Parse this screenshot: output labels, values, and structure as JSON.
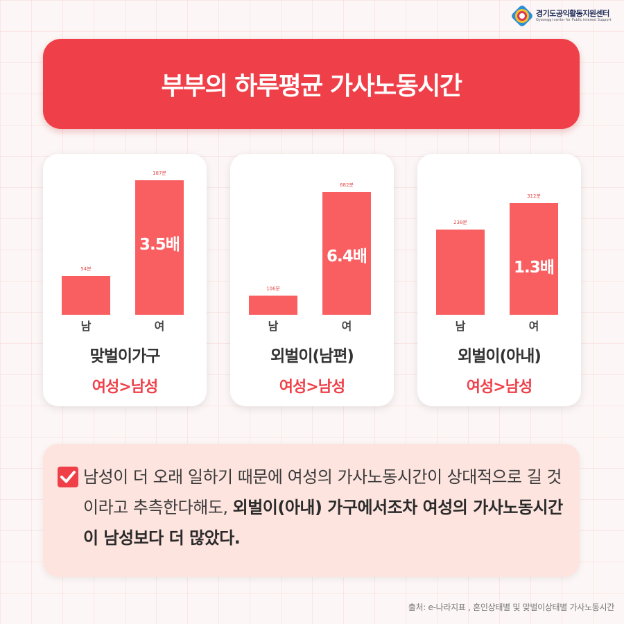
{
  "logo": {
    "name": "경기도공익활동지원센터",
    "sub": "Gyeonggi center for Public interest Support",
    "accent": "#1d2a57"
  },
  "title": "부부의 하루평균 가사노동시간",
  "colors": {
    "accent": "#ef4049",
    "bar": "#f95f61",
    "note_bg": "#fde4df"
  },
  "chart_data": [
    {
      "type": "bar",
      "title": "맞벌이가구",
      "categories": [
        "남",
        "여"
      ],
      "values": [
        54,
        187
      ],
      "value_labels": [
        "54분",
        "187분"
      ],
      "ratio_label": "3.5배",
      "comparison": "여성>남성"
    },
    {
      "type": "bar",
      "title": "외벌이(남편)",
      "categories": [
        "남",
        "여"
      ],
      "values": [
        106,
        682
      ],
      "value_labels": [
        "106분",
        "682분"
      ],
      "ratio_label": "6.4배",
      "comparison": "여성>남성"
    },
    {
      "type": "bar",
      "title": "외벌이(아내)",
      "categories": [
        "남",
        "여"
      ],
      "values": [
        238,
        312
      ],
      "value_labels": [
        "238분",
        "312분"
      ],
      "ratio_label": "1.3배",
      "comparison": "여성>남성"
    }
  ],
  "note": {
    "text_plain": "남성이 더 오래 일하기 때문에 여성의 가사노동시간이 상대적으로 길 것이라고 추측한다해도, ",
    "text_bold": "외벌이(아내) 가구에서조차 여성의 가사노동시간이 남성보다 더 많았다."
  },
  "source": "출처: e-나라지표 , 혼인상태별 및 맞벌이상태별 가사노동시간"
}
